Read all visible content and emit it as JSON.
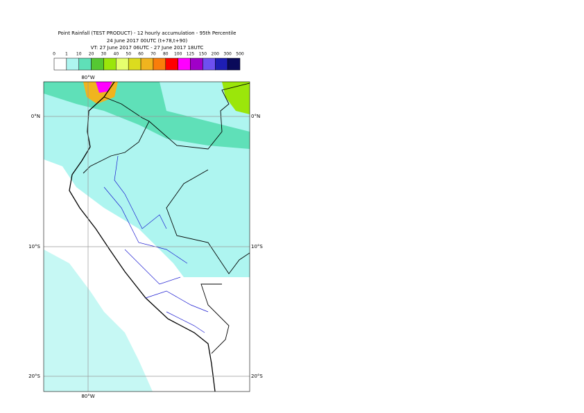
{
  "header": {
    "title": "Point Rainfall (TEST PRODUCT) - 12 hourly accumulation - 95th Percentile",
    "line2": "24 June 2017 00UTC (t+78,t+90)",
    "line3": "VT: 27 June 2017 06UTC - 27 June 2017 18UTC"
  },
  "legend": {
    "bounds": [
      0,
      1,
      10,
      20,
      30,
      40,
      50,
      60,
      70,
      80,
      100,
      125,
      150,
      200,
      300,
      500
    ],
    "colors": [
      "#ffffff",
      "#aef5f0",
      "#5fe0b8",
      "#55c832",
      "#9be60a",
      "#e6ff6e",
      "#dcdc1e",
      "#f0b41e",
      "#fa7d0a",
      "#ff0000",
      "#ff00ff",
      "#a000c8",
      "#6e50f0",
      "#1e1eb4",
      "#0a0a5a"
    ]
  },
  "map": {
    "lon_labels": [
      "80°W"
    ],
    "lat_labels": [
      "0°N",
      "10°S",
      "20°S"
    ]
  }
}
